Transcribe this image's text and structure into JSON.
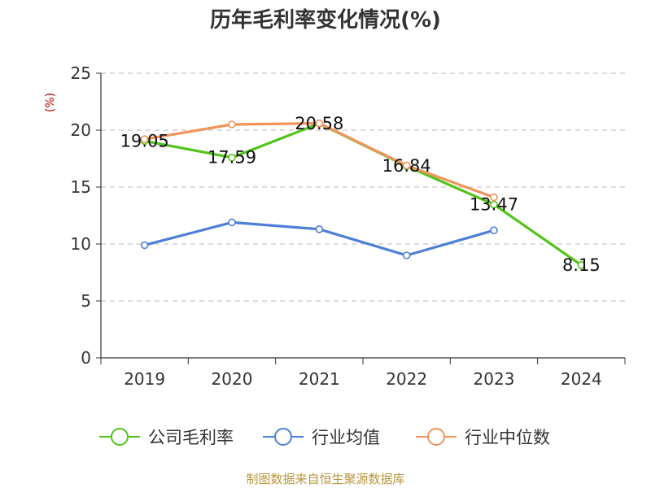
{
  "chart_data": {
    "type": "line",
    "title": "历年毛利率变化情况(%)",
    "ylabel": "(%)",
    "categories": [
      "2019",
      "2020",
      "2021",
      "2022",
      "2023",
      "2024"
    ],
    "ylim": [
      0,
      25
    ],
    "yticks": [
      0,
      5,
      10,
      15,
      20,
      25
    ],
    "grid": true,
    "legend": "bottom",
    "series": [
      {
        "name": "公司毛利率",
        "color": "#52c41a",
        "values": [
          19.05,
          17.59,
          20.58,
          16.84,
          13.47,
          8.15
        ],
        "labels": [
          "19.05",
          "17.59",
          "20.58",
          "16.84",
          "13.47",
          "8.15"
        ]
      },
      {
        "name": "行业均值",
        "color": "#4e7fd8",
        "values": [
          9.9,
          11.9,
          11.3,
          9.0,
          11.2,
          null
        ]
      },
      {
        "name": "行业中位数",
        "color": "#f0945a",
        "values": [
          19.2,
          20.5,
          20.6,
          16.9,
          14.1,
          null
        ]
      }
    ],
    "source": "制图数据来自恒生聚源数据库"
  }
}
